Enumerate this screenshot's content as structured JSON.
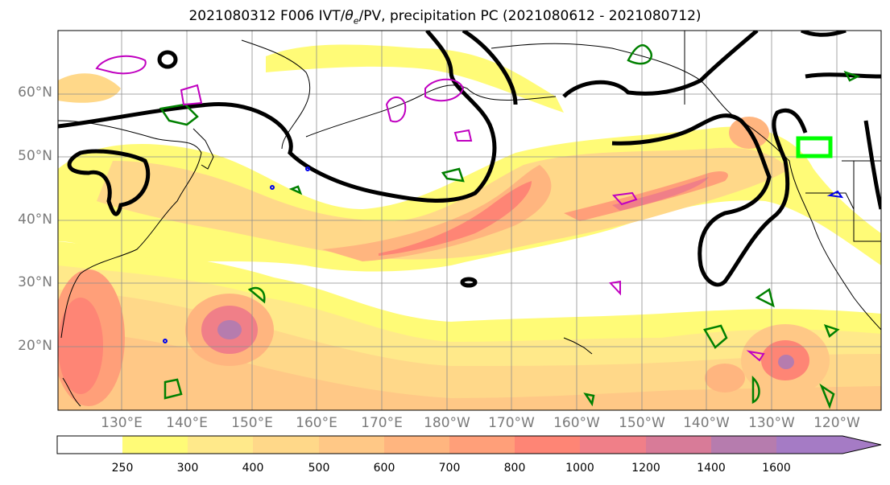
{
  "title_main": "2021080312 F006 IVT/",
  "title_theta": "θ",
  "title_e": "e",
  "title_rest": "/PV, precipitation PC (2021080612 - 2021080712)",
  "lat_labels": [
    "60°N",
    "50°N",
    "40°N",
    "30°N",
    "20°N"
  ],
  "lon_labels": [
    "130°E",
    "140°E",
    "150°E",
    "160°E",
    "170°E",
    "180°W",
    "170°W",
    "160°W",
    "150°W",
    "140°W",
    "130°W",
    "120°W"
  ],
  "colorbar": {
    "ticks": [
      "250",
      "300",
      "400",
      "500",
      "600",
      "700",
      "800",
      "1000",
      "1200",
      "1400",
      "1600"
    ],
    "colors": [
      "#ffffff",
      "#fffb77",
      "#ffe98a",
      "#ffd889",
      "#ffc886",
      "#ffb57f",
      "#ff9f79",
      "#fe8575",
      "#f07f88",
      "#d87b98",
      "#b67cae",
      "#a57bc5"
    ]
  },
  "colors": {
    "ivt_low": "#fffb77",
    "ivt_mid": "#ffc886",
    "ivt_high": "#fe8575",
    "ivt_peak": "#b67cae",
    "pv_contour": "#000000",
    "theta_e_contour": "#008000",
    "precip_box": "#00ff00",
    "magenta_contour": "#c000c0",
    "blue_contour": "#0000ee"
  }
}
